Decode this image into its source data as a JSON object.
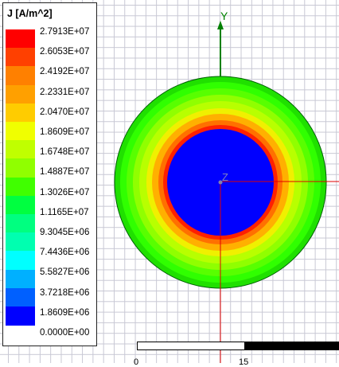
{
  "legend": {
    "title": "J [A/m^2]",
    "bands": [
      {
        "color": "#ff0000"
      },
      {
        "color": "#ff4000"
      },
      {
        "color": "#ff8000"
      },
      {
        "color": "#ffa000"
      },
      {
        "color": "#ffcc00"
      },
      {
        "color": "#f0ff00"
      },
      {
        "color": "#c0ff00"
      },
      {
        "color": "#90ff00"
      },
      {
        "color": "#40ff00"
      },
      {
        "color": "#00ff40"
      },
      {
        "color": "#00ff80"
      },
      {
        "color": "#00ffb0"
      },
      {
        "color": "#00ffff"
      },
      {
        "color": "#00b0ff"
      },
      {
        "color": "#0060ff"
      },
      {
        "color": "#0000ff"
      }
    ],
    "labels": [
      "2.7913E+07",
      "2.6053E+07",
      "2.4192E+07",
      "2.2331E+07",
      "2.0470E+07",
      "1.8609E+07",
      "1.6748E+07",
      "1.4887E+07",
      "1.3026E+07",
      "1.1165E+07",
      "9.3045E+06",
      "7.4436E+06",
      "5.5827E+06",
      "3.7218E+06",
      "1.8609E+06",
      "0.0000E+00"
    ]
  },
  "axes": {
    "y_label": "Y",
    "z_label": "Z",
    "axis_color": "#008000",
    "red_axis_color": "#e00000"
  },
  "scale_bar": {
    "labels": [
      "0",
      "15"
    ]
  },
  "field_plot": {
    "inner_color": "#0000ff",
    "ring_colors": [
      "#ff2000",
      "#ff7000",
      "#ffb000",
      "#f0f000",
      "#b8ff00",
      "#90ff00",
      "#58ff00",
      "#30ff00"
    ]
  }
}
